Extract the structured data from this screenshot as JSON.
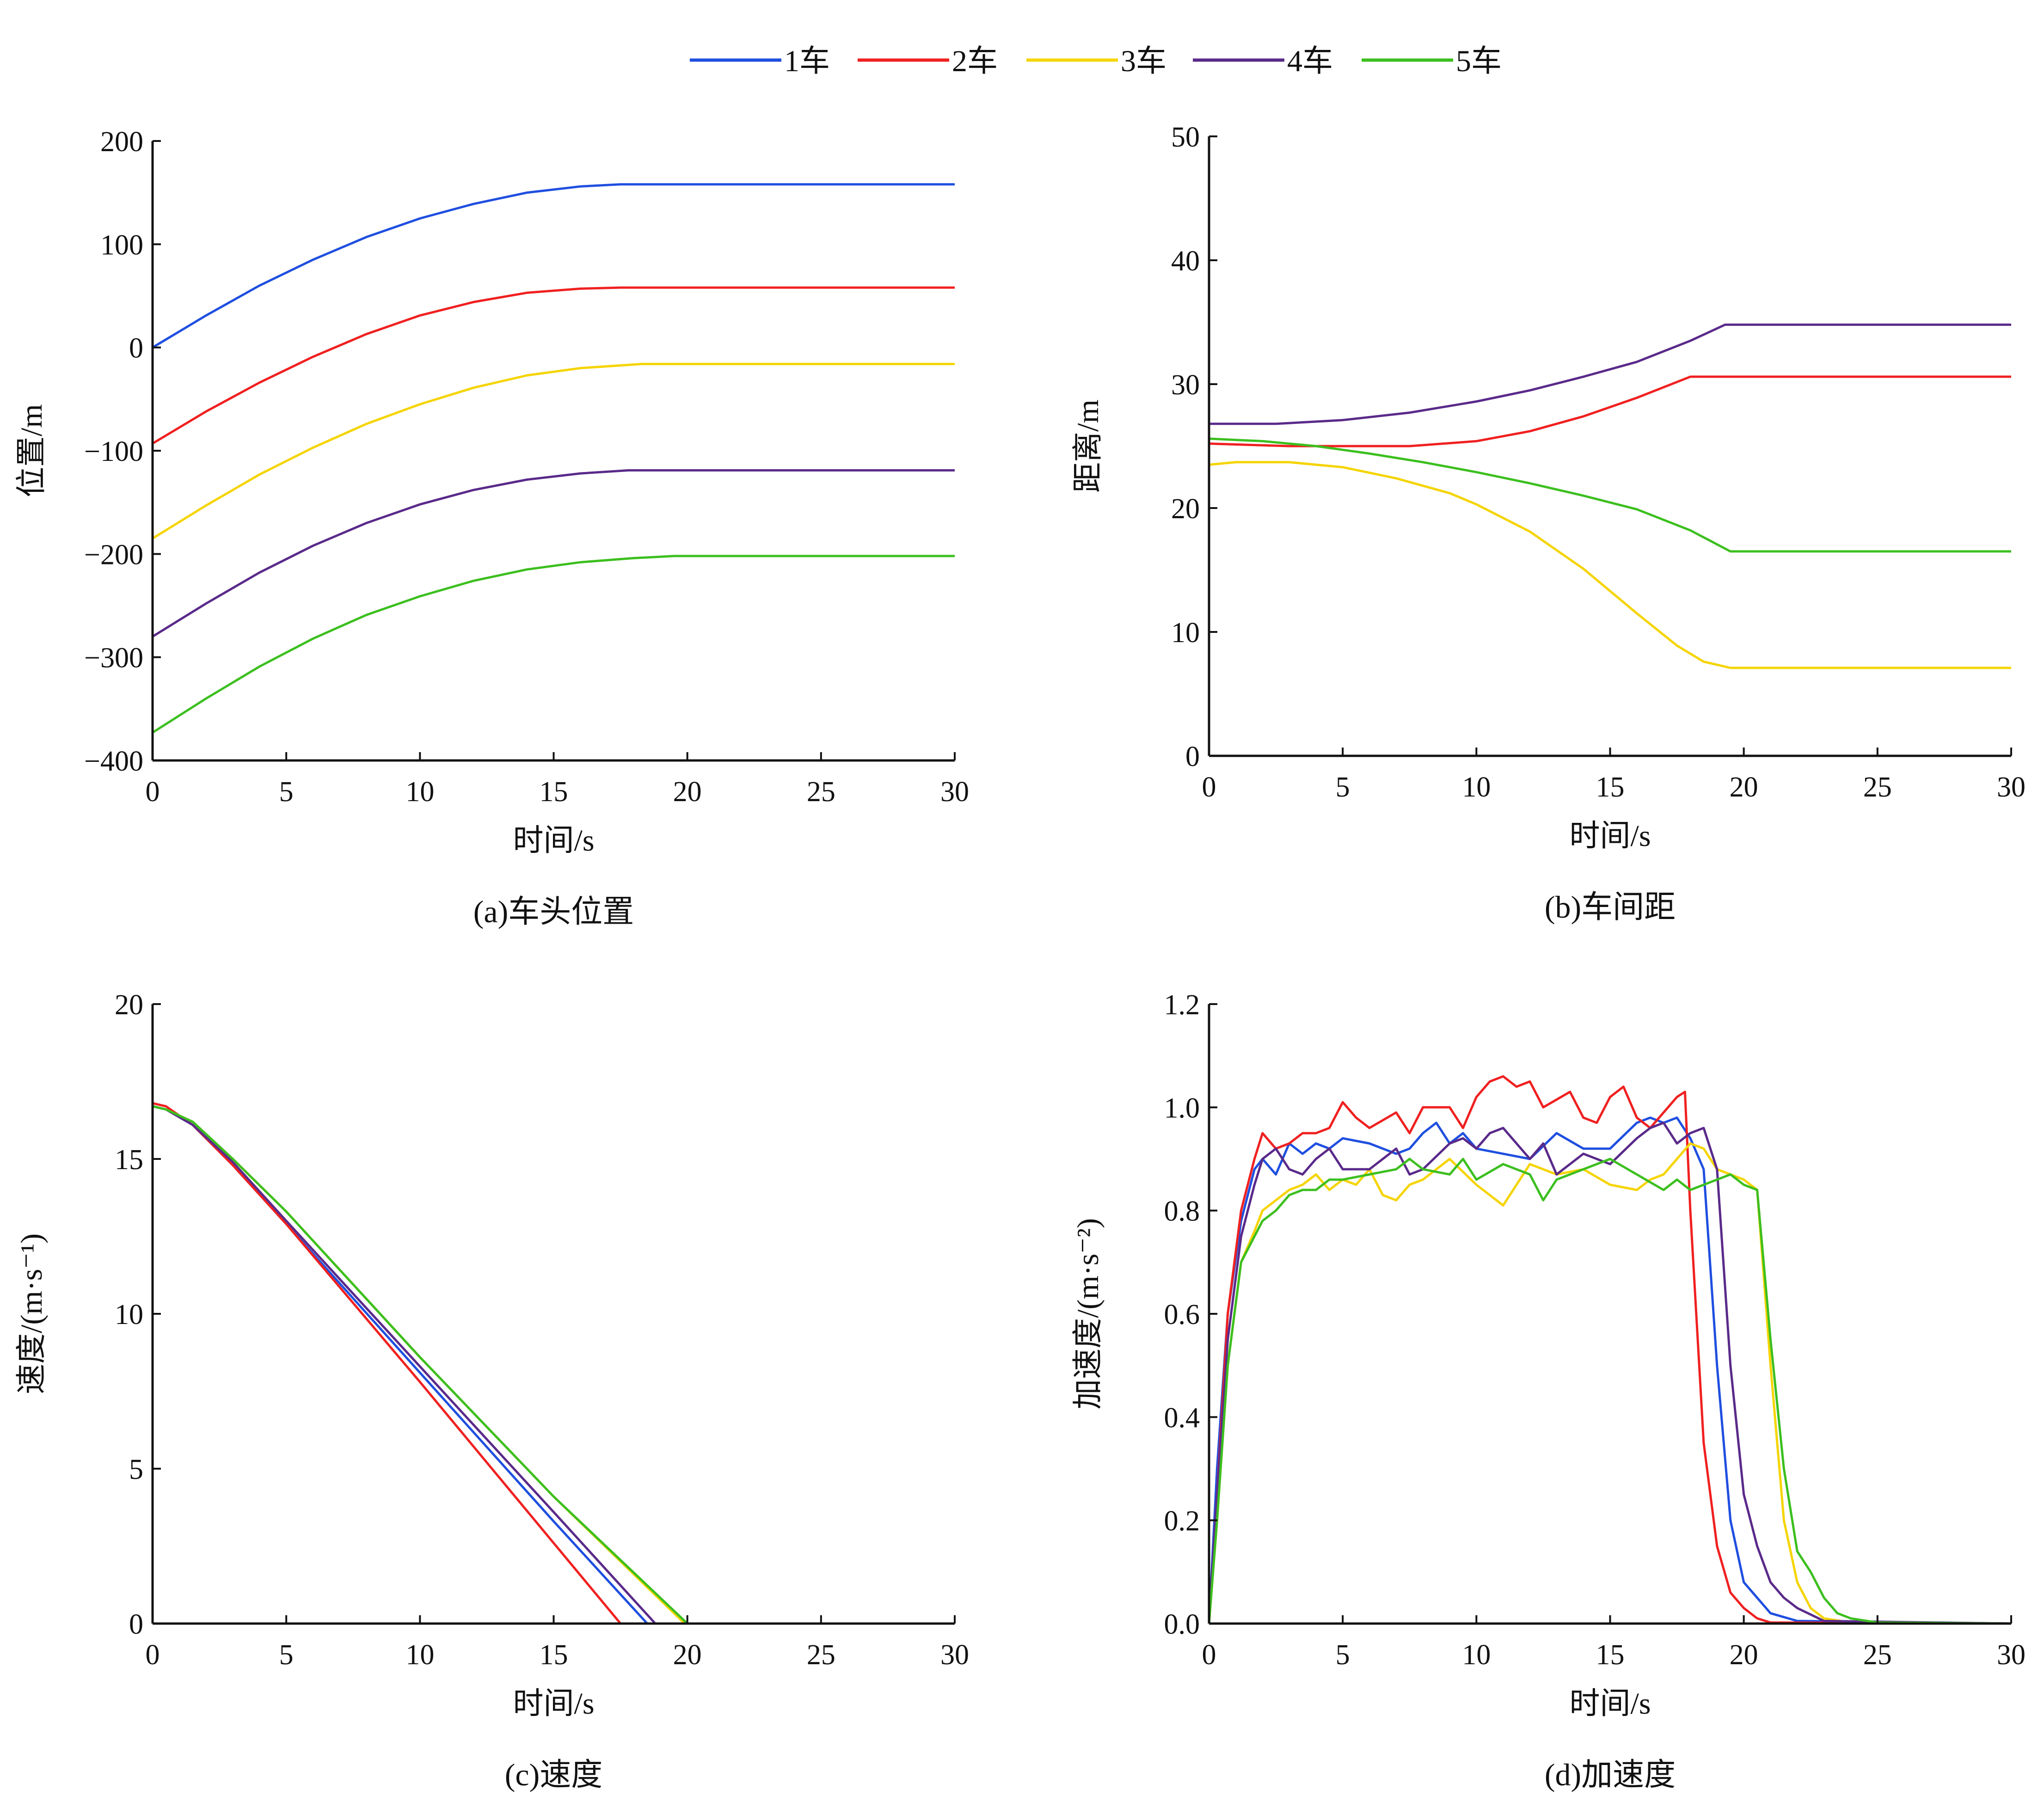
{
  "legend": {
    "items": [
      {
        "label": "1车",
        "color": "#1f4fe0"
      },
      {
        "label": "2车",
        "color": "#f02020"
      },
      {
        "label": "3车",
        "color": "#f5d400"
      },
      {
        "label": "4车",
        "color": "#5a2a8a"
      },
      {
        "label": "5车",
        "color": "#3cbf1f"
      }
    ]
  },
  "chart_data": [
    {
      "id": "a",
      "type": "line",
      "caption": "(a)车头位置",
      "xlabel": "时间/s",
      "ylabel": "位置/m",
      "xlim": [
        0,
        30
      ],
      "ylim": [
        -400,
        200
      ],
      "xticks": [
        0,
        5,
        10,
        15,
        20,
        25,
        30
      ],
      "xtick_labels": [
        "0",
        "5",
        "10",
        "15",
        "20",
        "25",
        "30"
      ],
      "yticks": [
        -400,
        -300,
        -200,
        -100,
        0,
        100,
        200
      ],
      "ytick_labels": [
        "−400",
        "−300",
        "−200",
        "−100",
        "0",
        "100",
        "200"
      ],
      "grid": false,
      "series": [
        {
          "name": "1车",
          "x": [
            0,
            2,
            4,
            6,
            8,
            10,
            12,
            14,
            16,
            17.5,
            30
          ],
          "y": [
            0,
            31,
            60,
            85,
            107,
            125,
            139,
            150,
            156,
            158,
            158
          ]
        },
        {
          "name": "2车",
          "x": [
            0,
            2,
            4,
            6,
            8,
            10,
            12,
            14,
            16,
            17.5,
            30
          ],
          "y": [
            -93,
            -62,
            -34,
            -9,
            13,
            31,
            44,
            53,
            57,
            58,
            58
          ]
        },
        {
          "name": "3车",
          "x": [
            0,
            2,
            4,
            6,
            8,
            10,
            12,
            14,
            16,
            18.3,
            30
          ],
          "y": [
            -185,
            -153,
            -123,
            -97,
            -74,
            -55,
            -39,
            -27,
            -20,
            -16,
            -16
          ]
        },
        {
          "name": "4车",
          "x": [
            0,
            2,
            4,
            6,
            8,
            10,
            12,
            14,
            16,
            17.8,
            30
          ],
          "y": [
            -280,
            -248,
            -218,
            -192,
            -170,
            -152,
            -138,
            -128,
            -122,
            -119,
            -119
          ]
        },
        {
          "name": "5车",
          "x": [
            0,
            2,
            4,
            6,
            8,
            10,
            12,
            14,
            16,
            18,
            19.5,
            30
          ],
          "y": [
            -373,
            -340,
            -309,
            -282,
            -259,
            -241,
            -226,
            -215,
            -208,
            -204,
            -202,
            -202
          ]
        }
      ]
    },
    {
      "id": "b",
      "type": "line",
      "caption": "(b)车间距",
      "xlabel": "时间/s",
      "ylabel": "距离/m",
      "xlim": [
        0,
        30
      ],
      "ylim": [
        0,
        50
      ],
      "xticks": [
        0,
        5,
        10,
        15,
        20,
        25,
        30
      ],
      "xtick_labels": [
        "0",
        "5",
        "10",
        "15",
        "20",
        "25",
        "30"
      ],
      "yticks": [
        0,
        10,
        20,
        30,
        40,
        50
      ],
      "ytick_labels": [
        "0",
        "10",
        "20",
        "30",
        "40",
        "50"
      ],
      "grid": false,
      "series": [
        {
          "name": "1车",
          "x": [
            0,
            30
          ],
          "y": [
            0,
            0
          ]
        },
        {
          "name": "2车",
          "x": [
            0,
            3,
            5,
            7.5,
            10,
            12,
            14,
            16,
            18,
            30
          ],
          "y": [
            25.2,
            25.0,
            25.0,
            25.0,
            25.4,
            26.2,
            27.4,
            28.9,
            30.6,
            30.6
          ]
        },
        {
          "name": "3车",
          "x": [
            0,
            1,
            3,
            5,
            7,
            9,
            10,
            12,
            14,
            16,
            17.5,
            18.5,
            19.5,
            30
          ],
          "y": [
            23.5,
            23.7,
            23.7,
            23.3,
            22.4,
            21.2,
            20.3,
            18.1,
            15.1,
            11.5,
            8.9,
            7.6,
            7.1,
            7.1
          ]
        },
        {
          "name": "4车",
          "x": [
            0,
            2.5,
            5,
            7.5,
            10,
            12,
            14,
            16,
            18,
            19.3,
            30
          ],
          "y": [
            26.8,
            26.8,
            27.1,
            27.7,
            28.6,
            29.5,
            30.6,
            31.8,
            33.5,
            34.8,
            34.8
          ]
        },
        {
          "name": "5车",
          "x": [
            0,
            2,
            4,
            6,
            8,
            10,
            12,
            14,
            16,
            18,
            19.5,
            30
          ],
          "y": [
            25.6,
            25.4,
            25.0,
            24.4,
            23.7,
            22.9,
            22.0,
            21.0,
            19.9,
            18.2,
            16.5,
            16.5
          ]
        }
      ]
    },
    {
      "id": "c",
      "type": "line",
      "caption": "(c)速度",
      "xlabel": "时间/s",
      "ylabel": "速度/(m·s⁻¹)",
      "xlim": [
        0,
        30
      ],
      "ylim": [
        0,
        20
      ],
      "xticks": [
        0,
        5,
        10,
        15,
        20,
        25,
        30
      ],
      "xtick_labels": [
        "0",
        "5",
        "10",
        "15",
        "20",
        "25",
        "30"
      ],
      "yticks": [
        0,
        5,
        10,
        15,
        20
      ],
      "ytick_labels": [
        "0",
        "5",
        "10",
        "15",
        "20"
      ],
      "grid": false,
      "series": [
        {
          "name": "1车",
          "x": [
            0,
            0.5,
            1.5,
            3,
            5,
            10,
            15,
            18.5,
            30
          ],
          "y": [
            16.7,
            16.6,
            16.1,
            14.8,
            12.9,
            8.1,
            3.3,
            0,
            0
          ]
        },
        {
          "name": "2车",
          "x": [
            0,
            0.5,
            1.5,
            3,
            5,
            10,
            15,
            17.5,
            30
          ],
          "y": [
            16.8,
            16.7,
            16.1,
            14.8,
            12.9,
            7.8,
            2.6,
            0,
            0
          ]
        },
        {
          "name": "3车",
          "x": [
            0,
            0.5,
            1.5,
            3,
            5,
            10,
            15,
            19.9,
            30
          ],
          "y": [
            16.7,
            16.6,
            16.2,
            15.0,
            13.3,
            8.6,
            4.1,
            0,
            0
          ]
        },
        {
          "name": "4车",
          "x": [
            0,
            0.5,
            1.5,
            3,
            5,
            10,
            15,
            18.8,
            30
          ],
          "y": [
            16.7,
            16.6,
            16.1,
            14.9,
            13.0,
            8.3,
            3.6,
            0,
            0
          ]
        },
        {
          "name": "5车",
          "x": [
            0,
            0.5,
            1.5,
            3,
            5,
            10,
            15,
            20,
            30
          ],
          "y": [
            16.7,
            16.6,
            16.2,
            15.0,
            13.3,
            8.6,
            4.1,
            0,
            0
          ]
        }
      ]
    },
    {
      "id": "d",
      "type": "line",
      "caption": "(d)加速度",
      "xlabel": "时间/s",
      "ylabel": "加速度/(m·s⁻²)",
      "xlim": [
        0,
        30
      ],
      "ylim": [
        0,
        1.2
      ],
      "xticks": [
        0,
        5,
        10,
        15,
        20,
        25,
        30
      ],
      "xtick_labels": [
        "0",
        "5",
        "10",
        "15",
        "20",
        "25",
        "30"
      ],
      "yticks": [
        0,
        0.2,
        0.4,
        0.6,
        0.8,
        1.0,
        1.2
      ],
      "ytick_labels": [
        "0.0",
        "0.2",
        "0.4",
        "0.6",
        "0.8",
        "1.0",
        "1.2"
      ],
      "grid": false,
      "series": [
        {
          "name": "1车",
          "x": [
            0,
            0.3,
            0.7,
            1.2,
            1.7,
            2.0,
            2.5,
            3.0,
            3.5,
            4.0,
            4.5,
            5.0,
            6.0,
            7.0,
            7.5,
            8.0,
            8.5,
            9.0,
            9.5,
            10.0,
            11.0,
            12.0,
            13.0,
            14.0,
            15.0,
            16.0,
            16.5,
            17.0,
            17.5,
            18.0,
            18.5,
            19.0,
            19.5,
            20.0,
            21.0,
            22.0,
            30
          ],
          "y": [
            0,
            0.3,
            0.6,
            0.78,
            0.88,
            0.9,
            0.87,
            0.93,
            0.91,
            0.93,
            0.92,
            0.94,
            0.93,
            0.91,
            0.92,
            0.95,
            0.97,
            0.93,
            0.95,
            0.92,
            0.91,
            0.9,
            0.95,
            0.92,
            0.92,
            0.97,
            0.98,
            0.97,
            0.98,
            0.94,
            0.88,
            0.5,
            0.2,
            0.08,
            0.02,
            0.005,
            0
          ]
        },
        {
          "name": "2车",
          "x": [
            0,
            0.3,
            0.7,
            1.2,
            1.7,
            2.0,
            2.5,
            3.0,
            3.5,
            4.0,
            4.5,
            5.0,
            5.5,
            6.0,
            7.0,
            7.5,
            8.0,
            9.0,
            9.5,
            10.0,
            10.5,
            11.0,
            11.5,
            12.0,
            12.5,
            13.5,
            14.0,
            14.5,
            15.0,
            15.5,
            16.0,
            16.5,
            17.0,
            17.5,
            17.8,
            18.0,
            18.5,
            19.0,
            19.5,
            20.0,
            20.5,
            21.0,
            30
          ],
          "y": [
            0,
            0.25,
            0.6,
            0.8,
            0.9,
            0.95,
            0.92,
            0.93,
            0.95,
            0.95,
            0.96,
            1.01,
            0.98,
            0.96,
            0.99,
            0.95,
            1.0,
            1.0,
            0.96,
            1.02,
            1.05,
            1.06,
            1.04,
            1.05,
            1.0,
            1.03,
            0.98,
            0.97,
            1.02,
            1.04,
            0.98,
            0.96,
            0.99,
            1.02,
            1.03,
            0.8,
            0.35,
            0.15,
            0.06,
            0.03,
            0.01,
            0.002,
            0
          ]
        },
        {
          "name": "3车",
          "x": [
            0,
            0.3,
            0.7,
            1.2,
            1.7,
            2.0,
            2.5,
            3.0,
            3.5,
            4.0,
            4.5,
            5.0,
            5.5,
            6.0,
            6.5,
            7.0,
            7.5,
            8.0,
            9.0,
            10.0,
            11.0,
            12.0,
            13.0,
            14.0,
            15.0,
            16.0,
            16.5,
            17.0,
            17.5,
            18.0,
            18.5,
            19.0,
            19.5,
            20.0,
            20.5,
            21.0,
            21.5,
            22.0,
            22.5,
            23.0,
            24.0,
            30
          ],
          "y": [
            0,
            0.2,
            0.5,
            0.7,
            0.76,
            0.8,
            0.82,
            0.84,
            0.85,
            0.87,
            0.84,
            0.86,
            0.85,
            0.88,
            0.83,
            0.82,
            0.85,
            0.86,
            0.9,
            0.85,
            0.81,
            0.89,
            0.87,
            0.88,
            0.85,
            0.84,
            0.86,
            0.87,
            0.9,
            0.93,
            0.92,
            0.88,
            0.87,
            0.86,
            0.84,
            0.5,
            0.2,
            0.08,
            0.03,
            0.01,
            0.002,
            0
          ]
        },
        {
          "name": "4车",
          "x": [
            0,
            0.3,
            0.7,
            1.2,
            1.7,
            2.0,
            2.5,
            3.0,
            3.5,
            4.0,
            4.5,
            5.0,
            6.0,
            6.5,
            7.0,
            7.5,
            8.0,
            9.0,
            9.5,
            10.0,
            10.5,
            11.0,
            12.0,
            12.5,
            13.0,
            14.0,
            15.0,
            16.0,
            16.5,
            17.0,
            17.5,
            18.0,
            18.5,
            19.0,
            19.5,
            20.0,
            20.5,
            21.0,
            21.5,
            22.0,
            23.0,
            30
          ],
          "y": [
            0,
            0.25,
            0.55,
            0.75,
            0.85,
            0.9,
            0.92,
            0.88,
            0.87,
            0.9,
            0.92,
            0.88,
            0.88,
            0.9,
            0.92,
            0.87,
            0.88,
            0.93,
            0.94,
            0.92,
            0.95,
            0.96,
            0.9,
            0.93,
            0.87,
            0.91,
            0.89,
            0.94,
            0.96,
            0.97,
            0.93,
            0.95,
            0.96,
            0.88,
            0.5,
            0.25,
            0.15,
            0.08,
            0.05,
            0.03,
            0.005,
            0
          ]
        },
        {
          "name": "5车",
          "x": [
            0,
            0.3,
            0.7,
            1.2,
            1.7,
            2.0,
            2.5,
            3.0,
            3.5,
            4.0,
            4.5,
            5.0,
            6.0,
            7.0,
            7.5,
            8.0,
            9.0,
            9.5,
            10.0,
            11.0,
            12.0,
            12.5,
            13.0,
            14.0,
            15.0,
            16.0,
            17.0,
            17.5,
            18.0,
            19.0,
            19.5,
            20.0,
            20.5,
            21.0,
            21.5,
            22.0,
            22.5,
            23.0,
            23.5,
            24.0,
            25.0,
            30
          ],
          "y": [
            0,
            0.2,
            0.5,
            0.7,
            0.75,
            0.78,
            0.8,
            0.83,
            0.84,
            0.84,
            0.86,
            0.86,
            0.87,
            0.88,
            0.9,
            0.88,
            0.87,
            0.9,
            0.86,
            0.89,
            0.87,
            0.82,
            0.86,
            0.88,
            0.9,
            0.87,
            0.84,
            0.86,
            0.84,
            0.86,
            0.87,
            0.85,
            0.84,
            0.55,
            0.3,
            0.14,
            0.1,
            0.05,
            0.02,
            0.01,
            0.002,
            0
          ]
        }
      ]
    }
  ]
}
